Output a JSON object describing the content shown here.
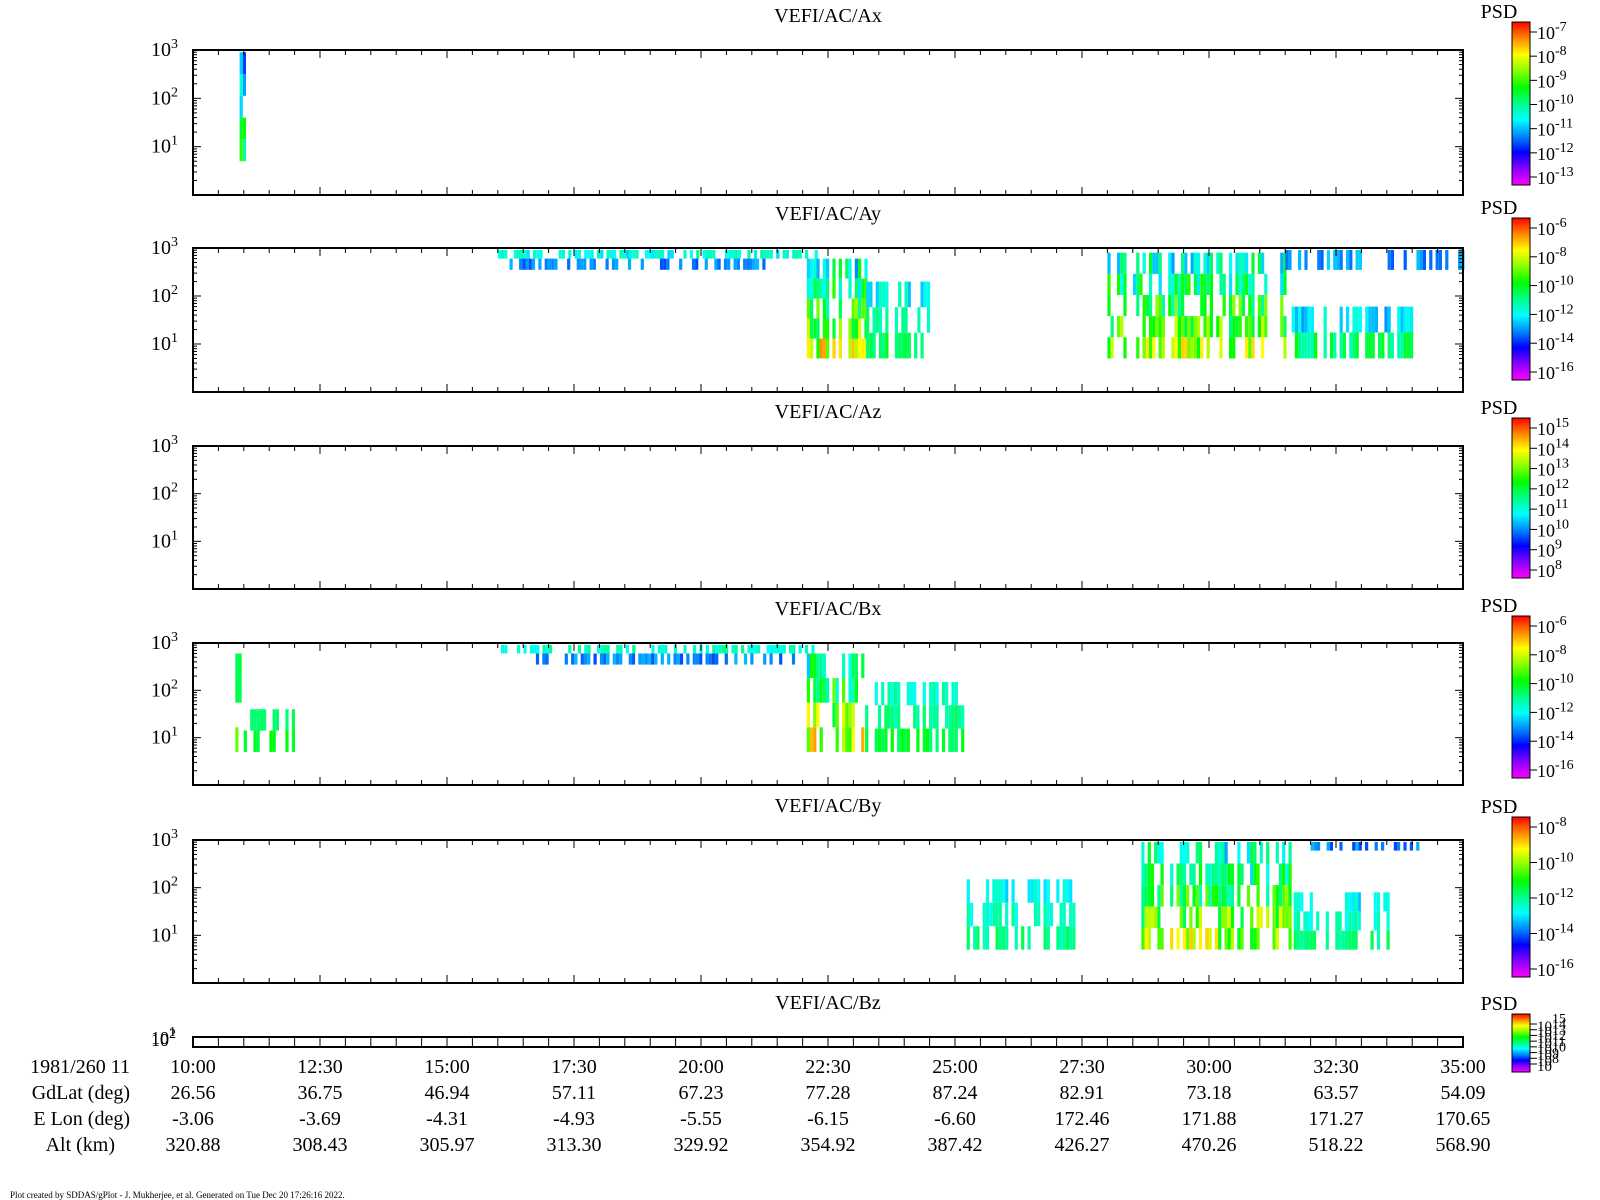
{
  "footer": "Plot created by SDDAS/gPlot - J. Mukherjee, et al.  Generated on Tue Dec 20 17:26:16 2022.",
  "colorbar_title": "PSD",
  "colormap": [
    "#ff00ff",
    "#8800ff",
    "#0000ff",
    "#0088ff",
    "#00ffff",
    "#00ff88",
    "#00ff00",
    "#88ff00",
    "#ffff00",
    "#ff8800",
    "#ff0000"
  ],
  "chart_data": [
    {
      "type": "heatmap",
      "title": "VEFI/AC/Ax",
      "ytick_labels": [
        "10",
        "10",
        "10"
      ],
      "ytick_exponents": [
        "3",
        "2",
        "1"
      ],
      "ylim": [
        1,
        1000
      ],
      "yscale": "log",
      "xlim": [
        "10:00",
        "35:00"
      ],
      "colorbar": {
        "labels": [
          "10",
          "10",
          "10",
          "10",
          "10",
          "10",
          "10"
        ],
        "exponents": [
          "-7",
          "-8",
          "-9",
          "-10",
          "-11",
          "-12",
          "-13"
        ]
      },
      "bands": [
        {
          "x": [
            "10:55",
            "11:00"
          ],
          "y": [
            5,
            900
          ],
          "level": [
            0.2,
            0.7
          ]
        }
      ]
    },
    {
      "type": "heatmap",
      "title": "VEFI/AC/Ay",
      "ytick_labels": [
        "10",
        "10",
        "10"
      ],
      "ytick_exponents": [
        "3",
        "2",
        "1"
      ],
      "ylim": [
        1,
        1000
      ],
      "yscale": "log",
      "xlim": [
        "10:00",
        "35:00"
      ],
      "colorbar": {
        "labels": [
          "10",
          "10",
          "10",
          "10",
          "10",
          "10"
        ],
        "exponents": [
          "-6",
          "-8",
          "-10",
          "-12",
          "-14",
          "-16"
        ]
      },
      "bands": [
        {
          "x": [
            "16:00",
            "22:15"
          ],
          "y": [
            600,
            1000
          ],
          "level": [
            0.3,
            0.55
          ]
        },
        {
          "x": [
            "16:10",
            "21:45"
          ],
          "y": [
            350,
            600
          ],
          "level": [
            0.2,
            0.4
          ]
        },
        {
          "x": [
            "22:05",
            "23:15"
          ],
          "y": [
            5,
            600
          ],
          "level": [
            0.3,
            0.9
          ]
        },
        {
          "x": [
            "23:15",
            "24:30"
          ],
          "y": [
            5,
            200
          ],
          "level": [
            0.35,
            0.6
          ]
        },
        {
          "x": [
            "28:00",
            "31:30"
          ],
          "y": [
            5,
            800
          ],
          "level": [
            0.3,
            0.85
          ]
        },
        {
          "x": [
            "31:30",
            "35:00"
          ],
          "y": [
            350,
            1000
          ],
          "level": [
            0.2,
            0.45
          ]
        },
        {
          "x": [
            "31:30",
            "34:00"
          ],
          "y": [
            5,
            60
          ],
          "level": [
            0.3,
            0.6
          ]
        }
      ]
    },
    {
      "type": "heatmap",
      "title": "VEFI/AC/Az",
      "ytick_labels": [
        "10",
        "10",
        "10"
      ],
      "ytick_exponents": [
        "3",
        "2",
        "1"
      ],
      "ylim": [
        1,
        1000
      ],
      "yscale": "log",
      "xlim": [
        "10:00",
        "35:00"
      ],
      "colorbar": {
        "labels": [
          "10",
          "10",
          "10",
          "10",
          "10",
          "10",
          "10",
          "10"
        ],
        "exponents": [
          "15",
          "14",
          "13",
          "12",
          "11",
          "10",
          "9",
          "8"
        ]
      },
      "bands": []
    },
    {
      "type": "heatmap",
      "title": "VEFI/AC/Bx",
      "ytick_labels": [
        "10",
        "10",
        "10"
      ],
      "ytick_exponents": [
        "3",
        "2",
        "1"
      ],
      "ylim": [
        1,
        1000
      ],
      "yscale": "log",
      "xlim": [
        "10:00",
        "35:00"
      ],
      "colorbar": {
        "labels": [
          "10",
          "10",
          "10",
          "10",
          "10",
          "10"
        ],
        "exponents": [
          "-6",
          "-8",
          "-10",
          "-12",
          "-14",
          "-16"
        ]
      },
      "bands": [
        {
          "x": [
            "10:50",
            "11:00"
          ],
          "y": [
            5,
            600
          ],
          "level": [
            0.4,
            0.8
          ]
        },
        {
          "x": [
            "11:00",
            "12:00"
          ],
          "y": [
            5,
            40
          ],
          "level": [
            0.5,
            0.6
          ]
        },
        {
          "x": [
            "16:00",
            "22:15"
          ],
          "y": [
            600,
            1000
          ],
          "level": [
            0.35,
            0.55
          ]
        },
        {
          "x": [
            "16:45",
            "21:50"
          ],
          "y": [
            350,
            600
          ],
          "level": [
            0.2,
            0.4
          ]
        },
        {
          "x": [
            "22:05",
            "23:10"
          ],
          "y": [
            5,
            600
          ],
          "level": [
            0.3,
            0.95
          ]
        },
        {
          "x": [
            "23:10",
            "25:10"
          ],
          "y": [
            5,
            150
          ],
          "level": [
            0.4,
            0.6
          ]
        }
      ]
    },
    {
      "type": "heatmap",
      "title": "VEFI/AC/By",
      "ytick_labels": [
        "10",
        "10",
        "10"
      ],
      "ytick_exponents": [
        "3",
        "2",
        "1"
      ],
      "ylim": [
        1,
        1000
      ],
      "yscale": "log",
      "xlim": [
        "10:00",
        "35:00"
      ],
      "colorbar": {
        "labels": [
          "10",
          "10",
          "10",
          "10",
          "10"
        ],
        "exponents": [
          "-8",
          "-10",
          "-12",
          "-14",
          "-16"
        ]
      },
      "bands": [
        {
          "x": [
            "25:10",
            "27:20"
          ],
          "y": [
            5,
            150
          ],
          "level": [
            0.35,
            0.55
          ]
        },
        {
          "x": [
            "28:40",
            "31:40"
          ],
          "y": [
            5,
            1000
          ],
          "level": [
            0.3,
            0.85
          ]
        },
        {
          "x": [
            "32:00",
            "34:10"
          ],
          "y": [
            600,
            1000
          ],
          "level": [
            0.2,
            0.4
          ]
        },
        {
          "x": [
            "31:40",
            "33:30"
          ],
          "y": [
            5,
            80
          ],
          "level": [
            0.35,
            0.55
          ]
        }
      ]
    },
    {
      "type": "heatmap",
      "title": "VEFI/AC/Bz",
      "ytick_labels": [
        "10",
        "10"
      ],
      "ytick_exponents": [
        "2",
        "1"
      ],
      "ylim": [
        1,
        1000
      ],
      "yscale": "log",
      "xlim": [
        "10:00",
        "35:00"
      ],
      "colorbar": {
        "labels": [
          "10",
          "10",
          "10",
          "10",
          "10",
          "10",
          "10",
          "10"
        ],
        "exponents": [
          "15",
          "14",
          "13",
          "12",
          "11",
          "10",
          "9",
          "8"
        ]
      },
      "bands": []
    }
  ],
  "xaxis": {
    "row_labels": [
      "1981/260 11",
      "GdLat (deg)",
      "E Lon (deg)",
      "Alt (km)"
    ],
    "ticks": [
      "10:00",
      "12:30",
      "15:00",
      "17:30",
      "20:00",
      "22:30",
      "25:00",
      "27:30",
      "30:00",
      "32:30",
      "35:00"
    ],
    "gdlat": [
      "26.56",
      "36.75",
      "46.94",
      "57.11",
      "67.23",
      "77.28",
      "87.24",
      "82.91",
      "73.18",
      "63.57",
      "54.09"
    ],
    "elon": [
      "-3.06",
      "-3.69",
      "-4.31",
      "-4.93",
      "-5.55",
      "-6.15",
      "-6.60",
      "172.46",
      "171.88",
      "171.27",
      "170.65"
    ],
    "alt": [
      "320.88",
      "308.43",
      "305.97",
      "313.30",
      "329.92",
      "354.92",
      "387.42",
      "426.27",
      "470.26",
      "518.22",
      "568.90"
    ]
  }
}
